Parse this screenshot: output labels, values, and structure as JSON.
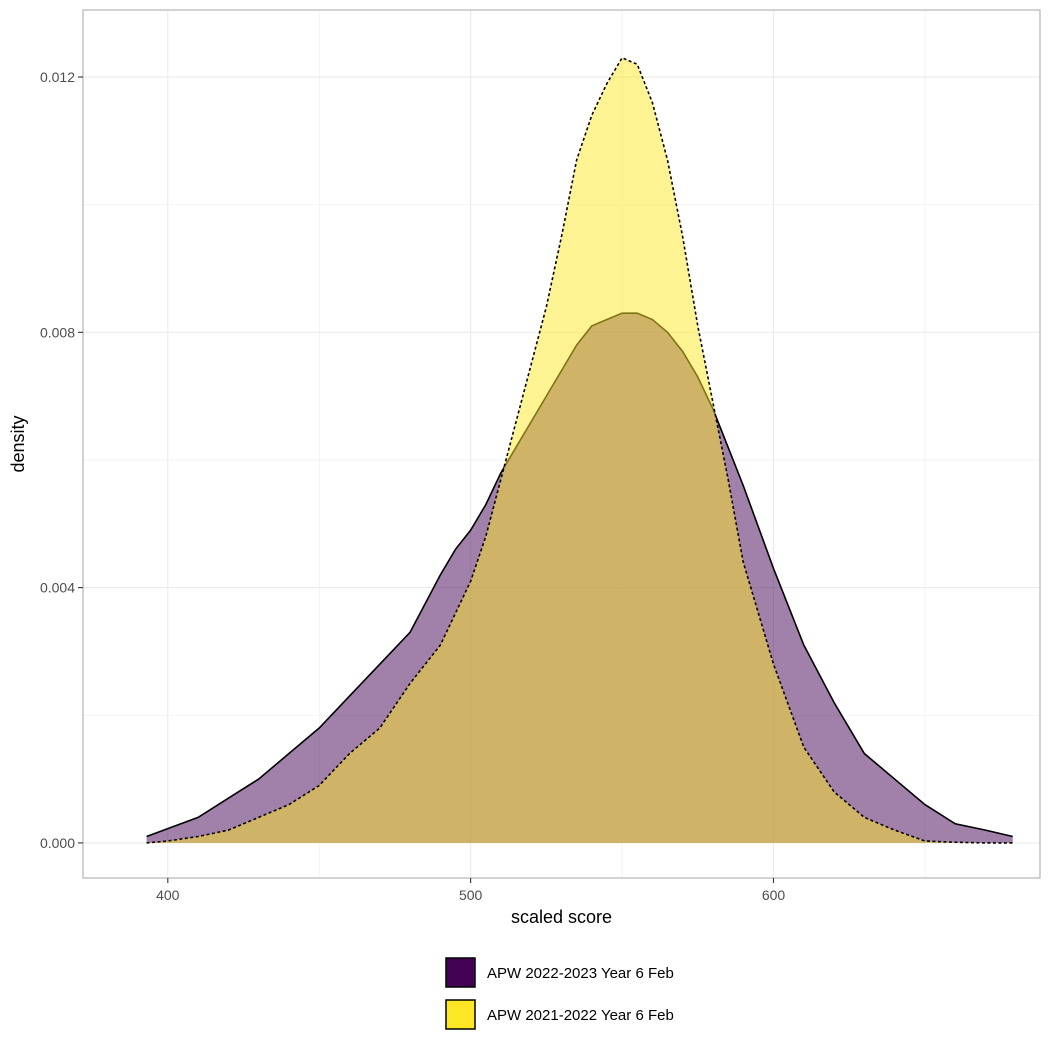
{
  "chart_data": {
    "type": "area",
    "title": "",
    "xlabel": "scaled score",
    "ylabel": "density",
    "xlim": [
      372,
      688
    ],
    "ylim": [
      -0.00055,
      0.01305
    ],
    "x_ticks": [
      400,
      500,
      600
    ],
    "x_tick_labels": [
      "400",
      "500",
      "600"
    ],
    "y_ticks": [
      0.0,
      0.004,
      0.008,
      0.012
    ],
    "y_tick_labels": [
      "0.000",
      "0.004",
      "0.008",
      "0.012"
    ],
    "grid": true,
    "legend_position": "bottom",
    "series": [
      {
        "name": "APW 2022-2023 Year 6 Feb",
        "fill": "#440154",
        "line_style": "solid",
        "x": [
          393,
          410,
          420,
          430,
          440,
          450,
          460,
          470,
          480,
          490,
          495,
          500,
          505,
          510,
          515,
          520,
          525,
          530,
          535,
          540,
          545,
          550,
          555,
          560,
          565,
          570,
          575,
          580,
          585,
          590,
          600,
          610,
          620,
          630,
          640,
          650,
          660,
          670,
          679
        ],
        "y": [
          0.0001,
          0.0004,
          0.0007,
          0.001,
          0.0014,
          0.0018,
          0.0023,
          0.0028,
          0.0033,
          0.0042,
          0.0046,
          0.0049,
          0.0053,
          0.0058,
          0.0062,
          0.0066,
          0.007,
          0.0074,
          0.0078,
          0.0081,
          0.0082,
          0.0083,
          0.0083,
          0.0082,
          0.008,
          0.0077,
          0.0073,
          0.0068,
          0.0062,
          0.0056,
          0.0043,
          0.0031,
          0.0022,
          0.0014,
          0.001,
          0.0006,
          0.0003,
          0.0002,
          0.0001
        ]
      },
      {
        "name": "APW 2021-2022 Year 6 Feb",
        "fill": "#FDE725",
        "line_style": "dashed",
        "x": [
          393,
          400,
          410,
          420,
          430,
          440,
          450,
          460,
          470,
          480,
          490,
          500,
          505,
          510,
          515,
          520,
          525,
          530,
          535,
          540,
          545,
          550,
          555,
          560,
          565,
          570,
          575,
          580,
          585,
          590,
          600,
          610,
          620,
          630,
          640,
          650,
          660,
          670,
          679
        ],
        "y": [
          0.0,
          3e-05,
          0.0001,
          0.0002,
          0.0004,
          0.0006,
          0.0009,
          0.0014,
          0.0018,
          0.0025,
          0.0031,
          0.0041,
          0.0048,
          0.0057,
          0.0066,
          0.0075,
          0.0084,
          0.0095,
          0.0107,
          0.0114,
          0.0119,
          0.0123,
          0.0122,
          0.0116,
          0.0107,
          0.0095,
          0.0081,
          0.0069,
          0.0057,
          0.0044,
          0.0028,
          0.0015,
          0.0008,
          0.0004,
          0.0002,
          3e-05,
          1e-05,
          0.0,
          0.0
        ]
      }
    ]
  }
}
